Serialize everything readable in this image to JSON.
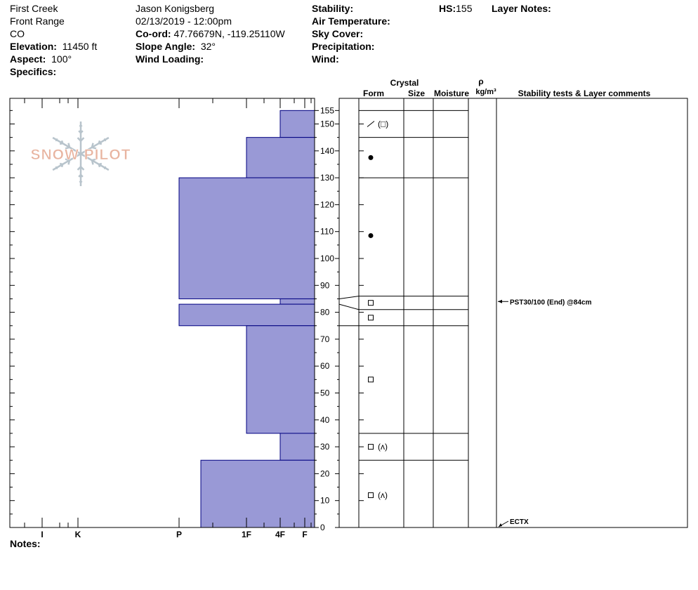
{
  "site": {
    "location_name": "First Creek",
    "range": "Front Range",
    "state": "CO",
    "elevation_label": "Elevation:",
    "elevation_value": "11450 ft",
    "aspect_label": "Aspect:",
    "aspect_value": "100°",
    "specifics_label": "Specifics:"
  },
  "observer": {
    "name": "Jason Konigsberg",
    "datetime": "02/13/2019 - 12:00pm",
    "coord_label": "Co-ord:",
    "coord_value": "47.76679N, -119.25110W",
    "slope_label": "Slope Angle:",
    "slope_value": "32°",
    "wind_loading_label": "Wind Loading:"
  },
  "conditions": {
    "stability_label": "Stability:",
    "air_temp_label": "Air Temperature:",
    "sky_cover_label": "Sky Cover:",
    "precip_label": "Precipitation:",
    "wind_label": "Wind:"
  },
  "hs": {
    "label": "HS:",
    "value": "155"
  },
  "layer_notes_label": "Layer Notes:",
  "notes_label": "Notes:",
  "logo": {
    "text": "SNOW PILOT",
    "color": "#e8b4a0",
    "flake_color": "#b8c4cc"
  },
  "columns": {
    "crystal": "Crystal",
    "form": "Form",
    "size": "Size",
    "moisture": "Moisture",
    "rho": "ρ",
    "density_unit": "kg/m³",
    "comments": "Stability tests & Layer comments"
  },
  "chart_data": {
    "type": "bar",
    "fill_color": "#9999d6",
    "outline_color": "#000080",
    "y_axis": {
      "min": 0,
      "max": 155,
      "ticks": [
        0,
        10,
        20,
        30,
        40,
        50,
        60,
        70,
        80,
        90,
        100,
        110,
        120,
        130,
        140,
        150,
        155
      ]
    },
    "hardness_scale": [
      "F",
      "4F",
      "1F",
      "P",
      "K",
      "I"
    ],
    "hardness_tick_labels": [
      "I",
      "K",
      "P",
      "1F",
      "4F",
      "F"
    ],
    "layers": [
      {
        "bottom": 145,
        "top": 155,
        "hardness": "4F"
      },
      {
        "bottom": 130,
        "top": 145,
        "hardness": "1F"
      },
      {
        "bottom": 85,
        "top": 130,
        "hardness": "P"
      },
      {
        "bottom": 83,
        "top": 85,
        "hardness": "4F"
      },
      {
        "bottom": 75,
        "top": 83,
        "hardness": "P"
      },
      {
        "bottom": 35,
        "top": 75,
        "hardness": "1F"
      },
      {
        "bottom": 25,
        "top": 35,
        "hardness": "4F"
      },
      {
        "bottom": 0,
        "top": 25,
        "hardness": "P-"
      }
    ],
    "layer_boundaries": [
      155,
      145,
      130,
      86,
      81,
      75,
      35,
      25,
      0
    ],
    "crystal_forms": [
      {
        "height": 150,
        "symbol": "⁄",
        "secondary": "(□)"
      },
      {
        "height": 137.5,
        "symbol": "●",
        "secondary": ""
      },
      {
        "height": 108.5,
        "symbol": "●",
        "secondary": ""
      },
      {
        "height": 83.5,
        "symbol": "□",
        "secondary": ""
      },
      {
        "height": 78,
        "symbol": "□",
        "secondary": ""
      },
      {
        "height": 55,
        "symbol": "□",
        "secondary": ""
      },
      {
        "height": 30,
        "symbol": "□",
        "secondary": "(ʌ)"
      },
      {
        "height": 12,
        "symbol": "□",
        "secondary": "(ʌ)"
      }
    ],
    "stability_tests": [
      {
        "height": 84,
        "label": "PST30/100 (End) @84cm"
      },
      {
        "height": 0,
        "label": "ECTX"
      }
    ]
  }
}
